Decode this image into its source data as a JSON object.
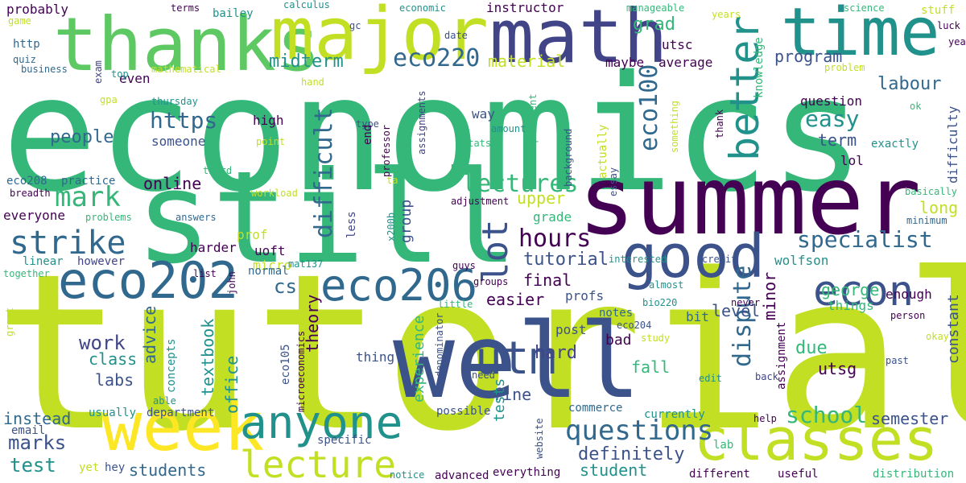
{
  "palette": {
    "purple": "#440154",
    "indigo": "#3b528b",
    "blue": "#31688e",
    "teal": "#21918c",
    "green": "#35b779",
    "lime": "#5ec962",
    "yellow": "#c2df23",
    "gold": "#fde725",
    "slate": "#414487"
  },
  "words": [
    {
      "text": "economics",
      "color": "#35b779",
      "vertical": false
    },
    {
      "text": "tutorials",
      "color": "#c2df23",
      "vertical": false
    },
    {
      "text": "summer",
      "color": "#440154",
      "vertical": false
    },
    {
      "text": "still",
      "color": "#35b779",
      "vertical": false
    },
    {
      "text": "well",
      "color": "#3b528b",
      "vertical": false
    },
    {
      "text": "math",
      "color": "#414487",
      "vertical": false
    },
    {
      "text": "thanks",
      "color": "#5ec962",
      "vertical": false
    },
    {
      "text": "major",
      "color": "#c2df23",
      "vertical": false
    },
    {
      "text": "time",
      "color": "#21918c",
      "vertical": false
    },
    {
      "text": "week",
      "color": "#fde725",
      "vertical": false
    },
    {
      "text": "classes",
      "color": "#c2df23",
      "vertical": false
    },
    {
      "text": "good",
      "color": "#3b528b",
      "vertical": false
    },
    {
      "text": "anyone",
      "color": "#21918c",
      "vertical": false
    },
    {
      "text": "eco202",
      "color": "#31688e",
      "vertical": false
    },
    {
      "text": "eco206",
      "color": "#31688e",
      "vertical": false
    },
    {
      "text": "lecture",
      "color": "#c2df23",
      "vertical": false
    },
    {
      "text": "utm",
      "color": "#3b528b",
      "vertical": false
    },
    {
      "text": "econ",
      "color": "#3b528b",
      "vertical": false
    },
    {
      "text": "strike",
      "color": "#31688e",
      "vertical": false
    },
    {
      "text": "better",
      "color": "#21918c",
      "vertical": true
    },
    {
      "text": "lot",
      "color": "#3b528b",
      "vertical": true
    },
    {
      "text": "mark",
      "color": "#35b779",
      "vertical": false
    },
    {
      "text": "https",
      "color": "#31688e",
      "vertical": false
    },
    {
      "text": "questions",
      "color": "#31688e",
      "vertical": false
    },
    {
      "text": "school",
      "color": "#35b779",
      "vertical": false
    },
    {
      "text": "specialist",
      "color": "#31688e",
      "vertical": false
    },
    {
      "text": "lectures",
      "color": "#35b779",
      "vertical": false
    },
    {
      "text": "hours",
      "color": "#440154",
      "vertical": false
    },
    {
      "text": "dispute",
      "color": "#31688e",
      "vertical": true
    },
    {
      "text": "difficult",
      "color": "#31688e",
      "vertical": true
    },
    {
      "text": "eco220",
      "color": "#31688e",
      "vertical": false
    },
    {
      "text": "eco100",
      "color": "#31688e",
      "vertical": true
    },
    {
      "text": "easy",
      "color": "#21918c",
      "vertical": false
    },
    {
      "text": "work",
      "color": "#414487",
      "vertical": false
    },
    {
      "text": "marks",
      "color": "#3b528b",
      "vertical": false
    },
    {
      "text": "test",
      "color": "#21918c",
      "vertical": false
    },
    {
      "text": "labour",
      "color": "#31688e",
      "vertical": false
    },
    {
      "text": "people",
      "color": "#31688e",
      "vertical": false
    },
    {
      "text": "cs",
      "color": "#31688e",
      "vertical": false
    },
    {
      "text": "tutorial",
      "color": "#3b528b",
      "vertical": false
    },
    {
      "text": "definitely",
      "color": "#3b528b",
      "vertical": false
    },
    {
      "text": "students",
      "color": "#31688e",
      "vertical": false
    },
    {
      "text": "instead",
      "color": "#31688e",
      "vertical": false
    },
    {
      "text": "semester",
      "color": "#3b528b",
      "vertical": false
    },
    {
      "text": "student",
      "color": "#21918c",
      "vertical": false
    },
    {
      "text": "hard",
      "color": "#414487",
      "vertical": false
    },
    {
      "text": "grad",
      "color": "#35b779",
      "vertical": false
    },
    {
      "text": "midterm",
      "color": "#21918c",
      "vertical": false
    },
    {
      "text": "material",
      "color": "#c2df23",
      "vertical": false
    },
    {
      "text": "program",
      "color": "#3b528b",
      "vertical": false
    },
    {
      "text": "long",
      "color": "#c2df23",
      "vertical": false
    },
    {
      "text": "term",
      "color": "#3b528b",
      "vertical": false
    },
    {
      "text": "upper",
      "color": "#c2df23",
      "vertical": false
    },
    {
      "text": "online",
      "color": "#440154",
      "vertical": false
    },
    {
      "text": "class",
      "color": "#21918c",
      "vertical": false
    },
    {
      "text": "labs",
      "color": "#3b528b",
      "vertical": false
    },
    {
      "text": "fine",
      "color": "#3b528b",
      "vertical": false
    },
    {
      "text": "fall",
      "color": "#35b779",
      "vertical": false
    },
    {
      "text": "due",
      "color": "#35b779",
      "vertical": false
    },
    {
      "text": "utsg",
      "color": "#440154",
      "vertical": false
    },
    {
      "text": "level",
      "color": "#3b528b",
      "vertical": false
    },
    {
      "text": "final",
      "color": "#440154",
      "vertical": false
    },
    {
      "text": "easier",
      "color": "#440154",
      "vertical": false
    },
    {
      "text": "george",
      "color": "#35b779",
      "vertical": false
    },
    {
      "text": "constant",
      "color": "#3b528b",
      "vertical": true
    },
    {
      "text": "theory",
      "color": "#440154",
      "vertical": true
    },
    {
      "text": "advice",
      "color": "#31688e",
      "vertical": true
    },
    {
      "text": "textbook",
      "color": "#21918c",
      "vertical": true
    },
    {
      "text": "office",
      "color": "#21918c",
      "vertical": true
    },
    {
      "text": "experience",
      "color": "#35b779",
      "vertical": true
    },
    {
      "text": "tests",
      "color": "#21918c",
      "vertical": true
    },
    {
      "text": "minor",
      "color": "#440154",
      "vertical": true
    },
    {
      "text": "group",
      "color": "#3b528b",
      "vertical": true
    },
    {
      "text": "even",
      "color": "#440154",
      "vertical": false
    },
    {
      "text": "instructor",
      "color": "#440154",
      "vertical": false
    },
    {
      "text": "maybe",
      "color": "#440154",
      "vertical": false
    },
    {
      "text": "average",
      "color": "#440154",
      "vertical": false
    },
    {
      "text": "utsc",
      "color": "#440154",
      "vertical": false
    },
    {
      "text": "high",
      "color": "#440154",
      "vertical": false
    },
    {
      "text": "someone",
      "color": "#3b528b",
      "vertical": false
    },
    {
      "text": "way",
      "color": "#3b528b",
      "vertical": false
    },
    {
      "text": "question",
      "color": "#440154",
      "vertical": false
    },
    {
      "text": "lol",
      "color": "#440154",
      "vertical": false
    },
    {
      "text": "exactly",
      "color": "#21918c",
      "vertical": false
    },
    {
      "text": "harder",
      "color": "#440154",
      "vertical": false
    },
    {
      "text": "uoft",
      "color": "#440154",
      "vertical": false
    },
    {
      "text": "prof",
      "color": "#c2df23",
      "vertical": false
    },
    {
      "text": "micro",
      "color": "#c2df23",
      "vertical": false
    },
    {
      "text": "everyone",
      "color": "#440154",
      "vertical": false
    },
    {
      "text": "however",
      "color": "#414487",
      "vertical": false
    },
    {
      "text": "linear",
      "color": "#21918c",
      "vertical": false
    },
    {
      "text": "normal",
      "color": "#31688e",
      "vertical": false
    },
    {
      "text": "grade",
      "color": "#35b779",
      "vertical": false
    },
    {
      "text": "profs",
      "color": "#3b528b",
      "vertical": false
    },
    {
      "text": "notes",
      "color": "#31688e",
      "vertical": false
    },
    {
      "text": "bad",
      "color": "#440154",
      "vertical": false
    },
    {
      "text": "things",
      "color": "#35b779",
      "vertical": false
    },
    {
      "text": "enough",
      "color": "#440154",
      "vertical": false
    },
    {
      "text": "wolfson",
      "color": "#21918c",
      "vertical": false
    },
    {
      "text": "post",
      "color": "#3b528b",
      "vertical": false
    },
    {
      "text": "bit",
      "color": "#31688e",
      "vertical": false
    },
    {
      "text": "thing",
      "color": "#3b528b",
      "vertical": false
    },
    {
      "text": "commerce",
      "color": "#31688e",
      "vertical": false
    },
    {
      "text": "currently",
      "color": "#21918c",
      "vertical": false
    },
    {
      "text": "specific",
      "color": "#3b528b",
      "vertical": false
    },
    {
      "text": "lab",
      "color": "#35b779",
      "vertical": false
    },
    {
      "text": "possible",
      "color": "#3b528b",
      "vertical": false
    },
    {
      "text": "usually",
      "color": "#21918c",
      "vertical": false
    },
    {
      "text": "department",
      "color": "#3b528b",
      "vertical": false
    },
    {
      "text": "email",
      "color": "#3b528b",
      "vertical": false
    },
    {
      "text": "yet",
      "color": "#c2df23",
      "vertical": false
    },
    {
      "text": "hey",
      "color": "#3b528b",
      "vertical": false
    },
    {
      "text": "advanced",
      "color": "#440154",
      "vertical": false
    },
    {
      "text": "everything",
      "color": "#440154",
      "vertical": false
    },
    {
      "text": "different",
      "color": "#440154",
      "vertical": false
    },
    {
      "text": "useful",
      "color": "#440154",
      "vertical": false
    },
    {
      "text": "distribution",
      "color": "#35b779",
      "vertical": false
    },
    {
      "text": "notice",
      "color": "#21918c",
      "vertical": false
    },
    {
      "text": "probably",
      "color": "#440154",
      "vertical": false
    },
    {
      "text": "game",
      "color": "#c2df23",
      "vertical": false
    },
    {
      "text": "http",
      "color": "#31688e",
      "vertical": false
    },
    {
      "text": "quiz",
      "color": "#31688e",
      "vertical": false
    },
    {
      "text": "business",
      "color": "#31688e",
      "vertical": false
    },
    {
      "text": "gpa",
      "color": "#c2df23",
      "vertical": false
    },
    {
      "text": "top",
      "color": "#21918c",
      "vertical": false
    },
    {
      "text": "eco208",
      "color": "#31688e",
      "vertical": false
    },
    {
      "text": "practice",
      "color": "#31688e",
      "vertical": false
    },
    {
      "text": "breadth",
      "color": "#440154",
      "vertical": false
    },
    {
      "text": "problems",
      "color": "#35b779",
      "vertical": false
    },
    {
      "text": "answers",
      "color": "#31688e",
      "vertical": false
    },
    {
      "text": "together",
      "color": "#35b779",
      "vertical": false
    },
    {
      "text": "list",
      "color": "#440154",
      "vertical": false
    },
    {
      "text": "mat137",
      "color": "#21918c",
      "vertical": false
    },
    {
      "text": "guys",
      "color": "#440154",
      "vertical": false
    },
    {
      "text": "groups",
      "color": "#440154",
      "vertical": false
    },
    {
      "text": "little",
      "color": "#35b779",
      "vertical": false
    },
    {
      "text": "interested",
      "color": "#21918c",
      "vertical": false
    },
    {
      "text": "credit",
      "color": "#3b528b",
      "vertical": false
    },
    {
      "text": "almost",
      "color": "#21918c",
      "vertical": false
    },
    {
      "text": "bio220",
      "color": "#21918c",
      "vertical": false
    },
    {
      "text": "eco204",
      "color": "#3b528b",
      "vertical": false
    },
    {
      "text": "study",
      "color": "#c2df23",
      "vertical": false
    },
    {
      "text": "never",
      "color": "#440154",
      "vertical": false
    },
    {
      "text": "person",
      "color": "#440154",
      "vertical": false
    },
    {
      "text": "okay",
      "color": "#c2df23",
      "vertical": false
    },
    {
      "text": "past",
      "color": "#3b528b",
      "vertical": false
    },
    {
      "text": "help",
      "color": "#440154",
      "vertical": false
    },
    {
      "text": "edit",
      "color": "#21918c",
      "vertical": false
    },
    {
      "text": "back",
      "color": "#414487",
      "vertical": false
    },
    {
      "text": "need",
      "color": "#3b528b",
      "vertical": false
    },
    {
      "text": "able",
      "color": "#21918c",
      "vertical": false
    },
    {
      "text": "terms",
      "color": "#440154",
      "vertical": false
    },
    {
      "text": "bailey",
      "color": "#21918c",
      "vertical": false
    },
    {
      "text": "calculus",
      "color": "#21918c",
      "vertical": false
    },
    {
      "text": "economic",
      "color": "#21918c",
      "vertical": false
    },
    {
      "text": "manageable",
      "color": "#35b779",
      "vertical": false
    },
    {
      "text": "years",
      "color": "#c2df23",
      "vertical": false
    },
    {
      "text": "science",
      "color": "#35b779",
      "vertical": false
    },
    {
      "text": "stuff",
      "color": "#c2df23",
      "vertical": false
    },
    {
      "text": "luck",
      "color": "#440154",
      "vertical": false
    },
    {
      "text": "yeah",
      "color": "#440154",
      "vertical": false
    },
    {
      "text": "problem",
      "color": "#c2df23",
      "vertical": false
    },
    {
      "text": "gc",
      "color": "#3b528b",
      "vertical": false
    },
    {
      "text": "date",
      "color": "#3b528b",
      "vertical": false
    },
    {
      "text": "mathematical",
      "color": "#c2df23",
      "vertical": false
    },
    {
      "text": "hand",
      "color": "#c2df23",
      "vertical": false
    },
    {
      "text": "thursday",
      "color": "#21918c",
      "vertical": false
    },
    {
      "text": "type",
      "color": "#3b528b",
      "vertical": false
    },
    {
      "text": "amount",
      "color": "#21918c",
      "vertical": false
    },
    {
      "text": "point",
      "color": "#c2df23",
      "vertical": false
    },
    {
      "text": "stats",
      "color": "#35b779",
      "vertical": false
    },
    {
      "text": "third",
      "color": "#35b779",
      "vertical": false
    },
    {
      "text": "workload",
      "color": "#c2df23",
      "vertical": false
    },
    {
      "text": "adjustment",
      "color": "#440154",
      "vertical": false
    },
    {
      "text": "ok",
      "color": "#35b779",
      "vertical": false
    },
    {
      "text": "basically",
      "color": "#35b779",
      "vertical": false
    },
    {
      "text": "minimum",
      "color": "#31688e",
      "vertical": false
    },
    {
      "text": "ta",
      "color": "#c2df23",
      "vertical": false
    },
    {
      "text": "exam",
      "color": "#414487",
      "vertical": true
    },
    {
      "text": "professor",
      "color": "#440154",
      "vertical": true
    },
    {
      "text": "assignments",
      "color": "#414487",
      "vertical": true
    },
    {
      "text": "x200b",
      "color": "#21918c",
      "vertical": true
    },
    {
      "text": "less",
      "color": "#414487",
      "vertical": true
    },
    {
      "text": "end",
      "color": "#440154",
      "vertical": true
    },
    {
      "text": "requirement",
      "color": "#35b779",
      "vertical": true
    },
    {
      "text": "background",
      "color": "#3b528b",
      "vertical": true
    },
    {
      "text": "actually",
      "color": "#c2df23",
      "vertical": true
    },
    {
      "text": "something",
      "color": "#c2df23",
      "vertical": true
    },
    {
      "text": "thank",
      "color": "#440154",
      "vertical": true
    },
    {
      "text": "knowledge",
      "color": "#35b779",
      "vertical": true
    },
    {
      "text": "difficulty",
      "color": "#3b528b",
      "vertical": true
    },
    {
      "text": "essay",
      "color": "#3b528b",
      "vertical": true
    },
    {
      "text": "concepts",
      "color": "#21918c",
      "vertical": true
    },
    {
      "text": "microeconomics",
      "color": "#440154",
      "vertical": true
    },
    {
      "text": "eco105",
      "color": "#3b528b",
      "vertical": true
    },
    {
      "text": "denominator",
      "color": "#3b528b",
      "vertical": true
    },
    {
      "text": "john",
      "color": "#440154",
      "vertical": true
    },
    {
      "text": "website",
      "color": "#3b528b",
      "vertical": true
    },
    {
      "text": "assignment",
      "color": "#440154",
      "vertical": true
    },
    {
      "text": "great",
      "color": "#c2df23",
      "vertical": true
    }
  ]
}
